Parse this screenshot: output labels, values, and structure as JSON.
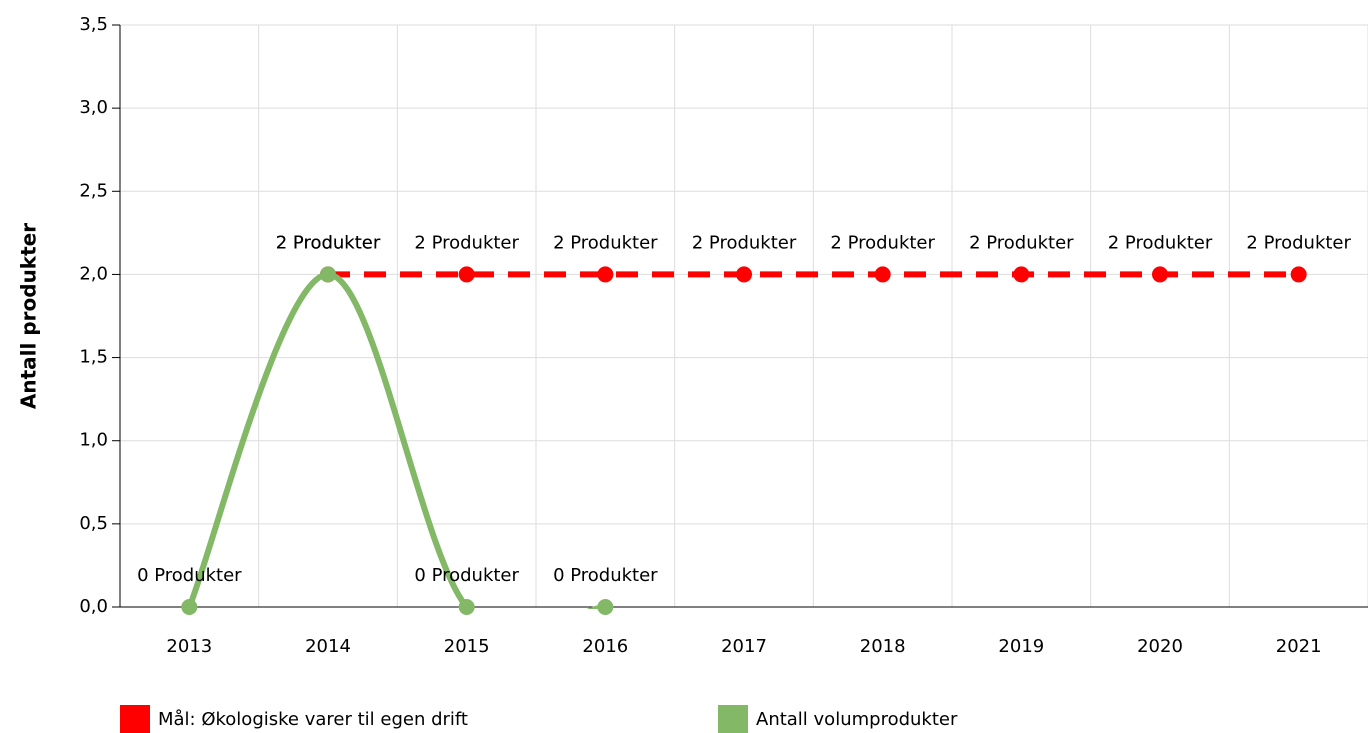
{
  "chart_data": {
    "type": "line",
    "y_label": "Antall produkter",
    "categories": [
      "2013",
      "2014",
      "2015",
      "2016",
      "2017",
      "2018",
      "2019",
      "2020",
      "2021"
    ],
    "series": [
      {
        "name": "Mål: Økologiske varer til egen drift",
        "color": "#ff0000",
        "dashed": true,
        "values": [
          null,
          2,
          2,
          2,
          2,
          2,
          2,
          2,
          2
        ],
        "value_labels": [
          null,
          "2 Produkter",
          "2 Produkter",
          "2 Produkter",
          "2 Produkter",
          "2 Produkter",
          "2 Produkter",
          "2 Produkter",
          "2 Produkter"
        ]
      },
      {
        "name": "Antall volumprodukter",
        "color": "#82b866",
        "smooth": true,
        "values": [
          0,
          2,
          0,
          0,
          null,
          null,
          null,
          null,
          null
        ],
        "value_labels": [
          "0 Produkter",
          "2 Produkter",
          "0 Produkter",
          "0 Produkter",
          null,
          null,
          null,
          null,
          null
        ]
      }
    ],
    "ylim": [
      0,
      3.5
    ],
    "yticks": [
      {
        "value": 0,
        "label": "0,0"
      },
      {
        "value": 0.5,
        "label": "0,5"
      },
      {
        "value": 1,
        "label": "1,0"
      },
      {
        "value": 1.5,
        "label": "1,5"
      },
      {
        "value": 2,
        "label": "2,0"
      },
      {
        "value": 2.5,
        "label": "2,5"
      },
      {
        "value": 3,
        "label": "3,0"
      },
      {
        "value": 3.5,
        "label": "3,5"
      }
    ],
    "grid": true,
    "legend": "bottom"
  }
}
